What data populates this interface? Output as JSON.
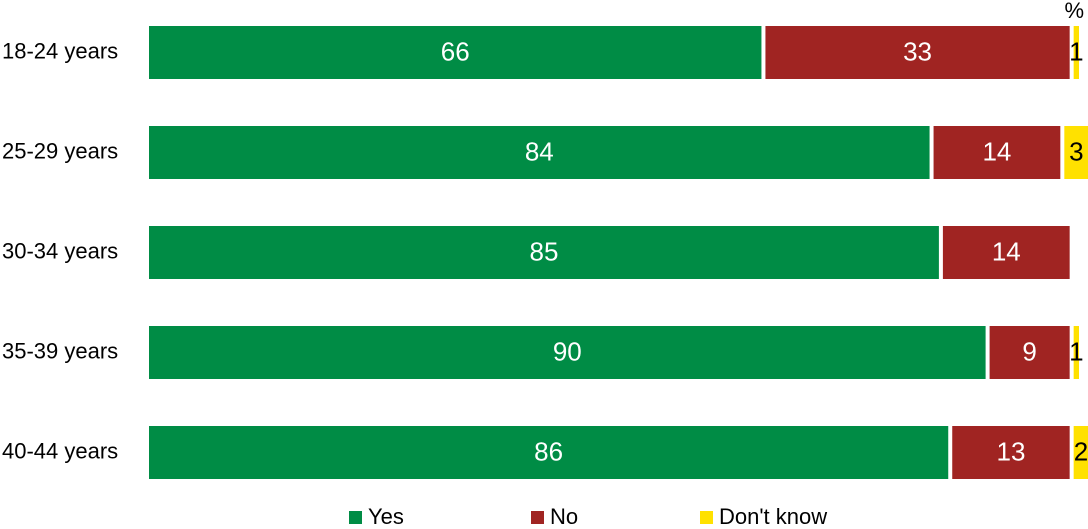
{
  "chart_data": {
    "type": "bar",
    "orientation": "horizontal",
    "stacked": true,
    "unit": "%",
    "categories": [
      "18-24 years",
      "25-29 years",
      "30-34 years",
      "35-39 years",
      "40-44 years"
    ],
    "series": [
      {
        "name": "Yes",
        "color": "#008C45",
        "values": [
          66,
          84,
          85,
          90,
          86
        ],
        "label_color": "#ffffff"
      },
      {
        "name": "No",
        "color": "#A02422",
        "values": [
          33,
          14,
          14,
          9,
          13
        ],
        "label_color": "#ffffff"
      },
      {
        "name": "Don't know",
        "color": "#FFE100",
        "values": [
          1,
          3,
          0,
          1,
          2
        ],
        "label_color": "#000000"
      }
    ],
    "xlim": [
      0,
      100
    ],
    "legend_position": "bottom",
    "grid": false
  }
}
